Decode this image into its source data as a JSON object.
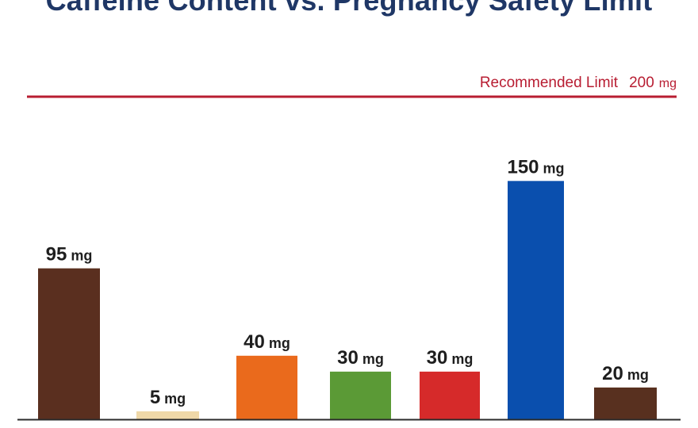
{
  "chart_data": {
    "type": "bar",
    "title": "Caffeine Content vs. Pregnancy Safety Limit",
    "categories": [
      "",
      "",
      "",
      "",
      "",
      "",
      ""
    ],
    "values": [
      95,
      5,
      40,
      30,
      30,
      150,
      20
    ],
    "unit": "mg",
    "bar_colors": [
      "#5a2f1f",
      "#efd8a8",
      "#ea6a1c",
      "#5b9a36",
      "#d62a2a",
      "#0a4fae",
      "#58301f"
    ],
    "ylim": [
      0,
      200
    ],
    "reference_line": {
      "label": "Recommended Limit",
      "value": 200,
      "value_text": "200",
      "unit": "mg",
      "color": "#b81d32"
    },
    "grid": false,
    "legend": "none",
    "xlabel": "",
    "ylabel": ""
  },
  "colors": {
    "title": "#1f3766",
    "axis": "#2b2b2b",
    "label_text": "#1e1e1e"
  }
}
